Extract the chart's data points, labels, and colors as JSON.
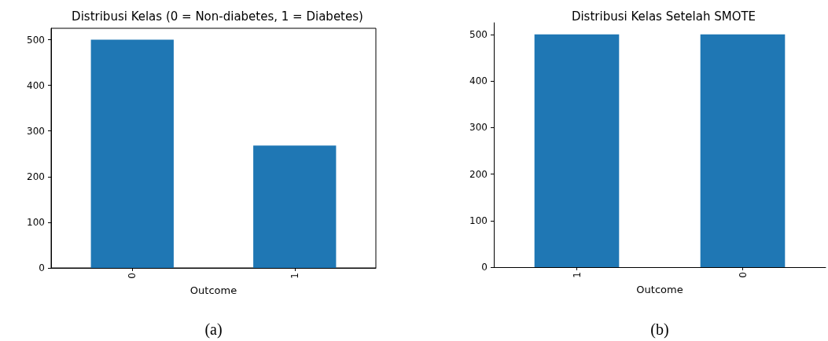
{
  "chart_data": [
    {
      "type": "bar",
      "title": "Distribusi Kelas (0 = Non-diabetes, 1 = Diabetes)",
      "xlabel": "Outcome",
      "categories": [
        "0",
        "1"
      ],
      "values": [
        500,
        268
      ],
      "color": "#1f77b4",
      "ylim": [
        0,
        525
      ],
      "yticks": [
        0,
        100,
        200,
        300,
        400,
        500
      ],
      "grid": false,
      "annotations": [
        "(a)"
      ]
    },
    {
      "type": "bar",
      "title": "Distribusi Kelas Setelah SMOTE",
      "xlabel": "Outcome",
      "categories": [
        "1",
        "0"
      ],
      "values": [
        500,
        500
      ],
      "color": "#1f77b4",
      "ylim": [
        0,
        525
      ],
      "yticks": [
        0,
        100,
        200,
        300,
        400,
        500
      ],
      "grid": false,
      "annotations": [
        "(b)"
      ]
    }
  ]
}
